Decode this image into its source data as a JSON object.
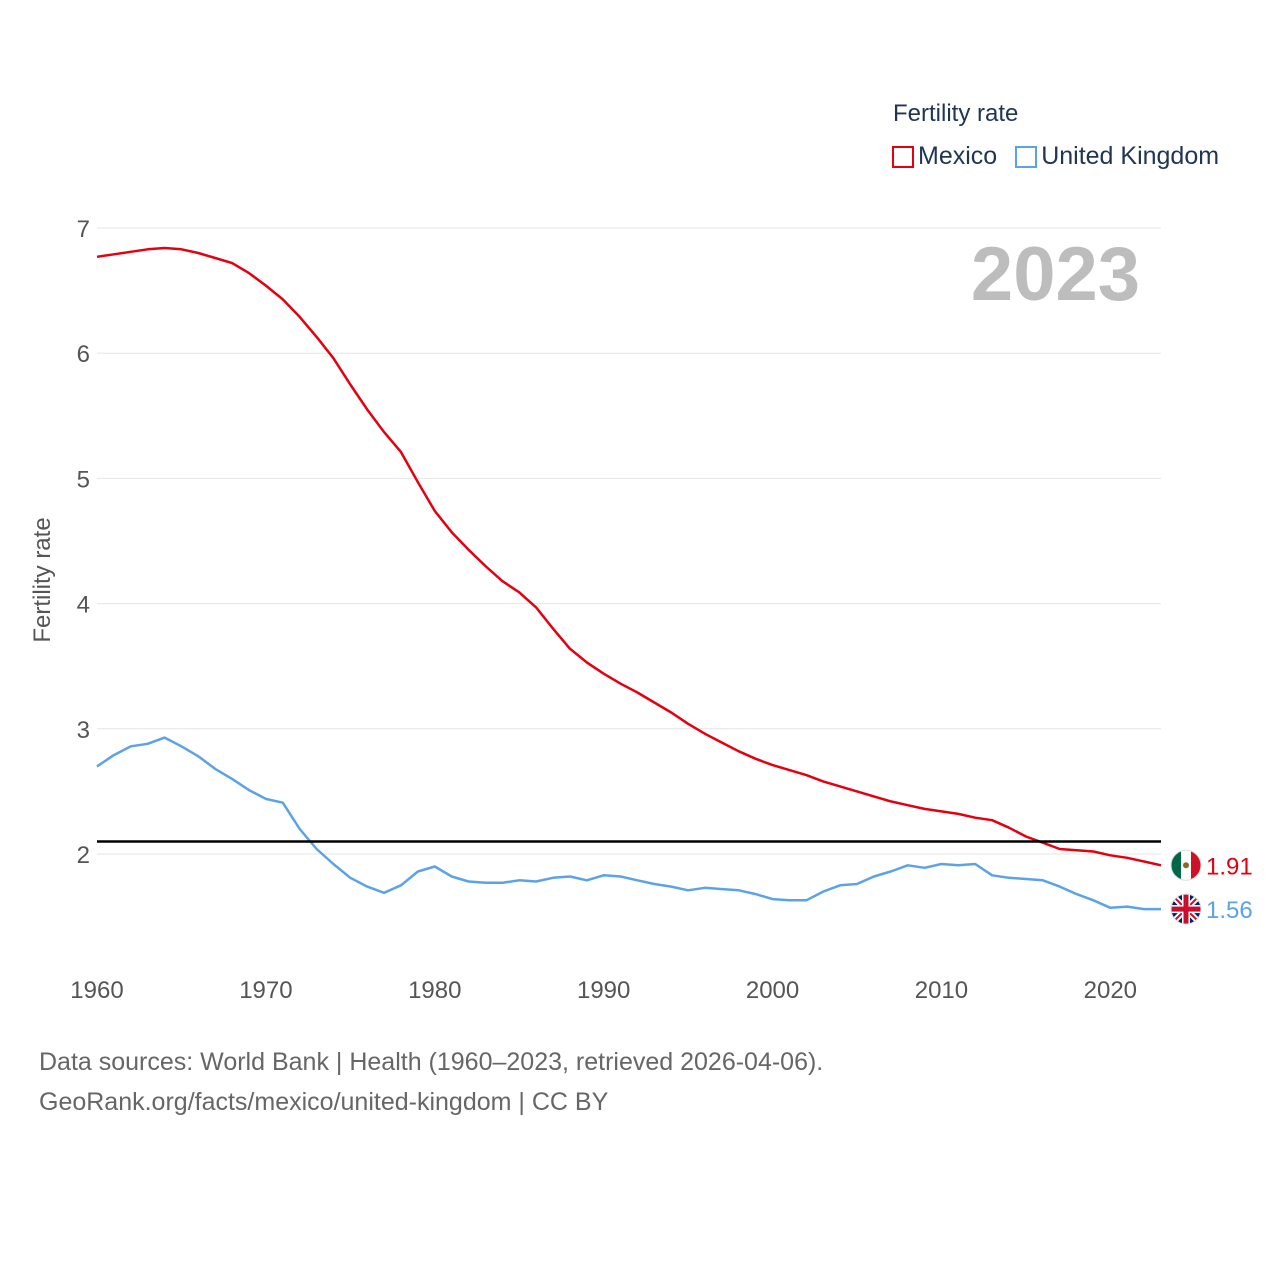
{
  "chart_data": {
    "type": "line",
    "year_label": "2023",
    "ylabel": "Fertility rate",
    "xlim": [
      1960,
      2023
    ],
    "ylim": [
      1.2,
      7.2
    ],
    "x_ticks": [
      "1960",
      "1970",
      "1980",
      "1990",
      "2000",
      "2010",
      "2020"
    ],
    "y_ticks": [
      "2",
      "3",
      "4",
      "5",
      "6",
      "7"
    ],
    "grid": true,
    "legend": {
      "title": "Fertility rate",
      "position": "top-right"
    },
    "reference_line": {
      "value": 2.1,
      "color": "#000000"
    },
    "x": [
      1960,
      1961,
      1962,
      1963,
      1964,
      1965,
      1966,
      1967,
      1968,
      1969,
      1970,
      1971,
      1972,
      1973,
      1974,
      1975,
      1976,
      1977,
      1978,
      1979,
      1980,
      1981,
      1982,
      1983,
      1984,
      1985,
      1986,
      1987,
      1988,
      1989,
      1990,
      1991,
      1992,
      1993,
      1994,
      1995,
      1996,
      1997,
      1998,
      1999,
      2000,
      2001,
      2002,
      2003,
      2004,
      2005,
      2006,
      2007,
      2008,
      2009,
      2010,
      2011,
      2012,
      2013,
      2014,
      2015,
      2016,
      2017,
      2018,
      2019,
      2020,
      2021,
      2022,
      2023
    ],
    "series": [
      {
        "name": "Mexico",
        "color": "#e4000f",
        "end_label": "1.91",
        "values": [
          6.77,
          6.79,
          6.81,
          6.83,
          6.84,
          6.83,
          6.8,
          6.76,
          6.72,
          6.64,
          6.54,
          6.43,
          6.29,
          6.13,
          5.96,
          5.75,
          5.55,
          5.37,
          5.21,
          4.97,
          4.74,
          4.57,
          4.43,
          4.3,
          4.18,
          4.09,
          3.97,
          3.8,
          3.64,
          3.53,
          3.44,
          3.36,
          3.29,
          3.21,
          3.13,
          3.04,
          2.96,
          2.89,
          2.82,
          2.76,
          2.71,
          2.67,
          2.63,
          2.58,
          2.54,
          2.5,
          2.46,
          2.42,
          2.39,
          2.36,
          2.34,
          2.32,
          2.29,
          2.27,
          2.21,
          2.14,
          2.09,
          2.04,
          2.03,
          2.02,
          1.99,
          1.97,
          1.94,
          1.91
        ]
      },
      {
        "name": "United Kingdom",
        "color": "#5ba3e6",
        "end_label": "1.56",
        "values": [
          2.7,
          2.79,
          2.86,
          2.88,
          2.93,
          2.86,
          2.78,
          2.68,
          2.6,
          2.51,
          2.44,
          2.41,
          2.2,
          2.04,
          1.92,
          1.81,
          1.74,
          1.69,
          1.75,
          1.86,
          1.9,
          1.82,
          1.78,
          1.77,
          1.77,
          1.79,
          1.78,
          1.81,
          1.82,
          1.79,
          1.83,
          1.82,
          1.79,
          1.76,
          1.74,
          1.71,
          1.73,
          1.72,
          1.71,
          1.68,
          1.64,
          1.63,
          1.63,
          1.7,
          1.75,
          1.76,
          1.82,
          1.86,
          1.91,
          1.89,
          1.92,
          1.91,
          1.92,
          1.83,
          1.81,
          1.8,
          1.79,
          1.74,
          1.68,
          1.63,
          1.57,
          1.58,
          1.56,
          1.56
        ]
      }
    ]
  },
  "footer": {
    "line1": "Data sources: World Bank | Health (1960–2023, retrieved 2026-04-06).",
    "line2": "GeoRank.org/facts/mexico/united-kingdom | CC BY"
  }
}
